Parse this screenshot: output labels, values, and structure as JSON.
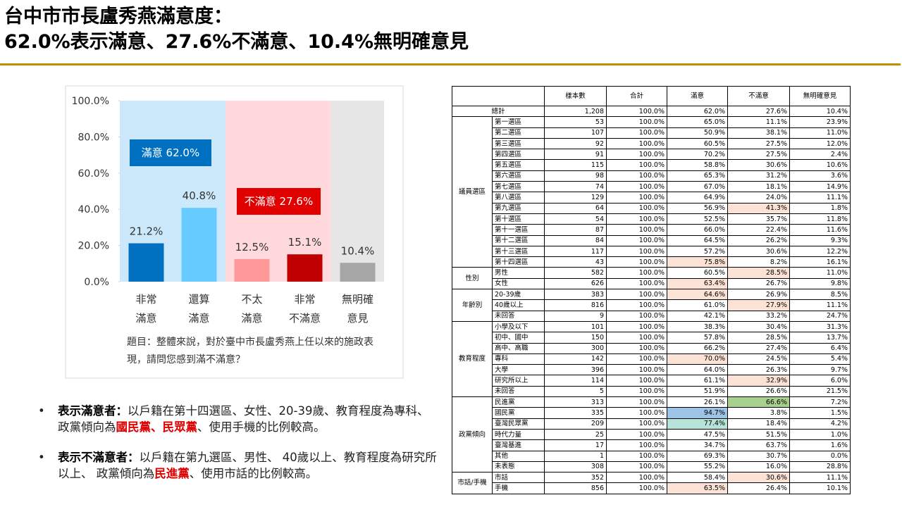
{
  "header": {
    "title": [
      "台中市市長盧秀燕滿意度：",
      "62.0%表示滿意、27.6%不滿意、10.4%無明確意見"
    ]
  },
  "chart_data": {
    "type": "bar",
    "categories": [
      [
        "非常",
        "滿意"
      ],
      [
        "還算",
        "滿意"
      ],
      [
        "不太",
        "滿意"
      ],
      [
        "非常",
        "不滿意"
      ],
      [
        "無明確",
        "意見"
      ]
    ],
    "values": [
      21.2,
      40.8,
      12.5,
      15.1,
      10.4
    ],
    "value_labels": [
      "21.2%",
      "40.8%",
      "12.5%",
      "15.1%",
      "10.4%"
    ],
    "colors": [
      "#0070c0",
      "#66ccff",
      "#ff9999",
      "#c00000",
      "#a6a6a6"
    ],
    "band_colors": [
      "#cce9fb",
      "#cce9fb",
      "#ffd9dc",
      "#ffd9dc",
      "#e6e6e6"
    ],
    "ylim": [
      0,
      100
    ],
    "yticks": [
      {
        "value": 0,
        "label": "0.0%"
      },
      {
        "value": 20,
        "label": "20.0%"
      },
      {
        "value": 40,
        "label": "40.0%"
      },
      {
        "value": 60,
        "label": "60.0%"
      },
      {
        "value": 80,
        "label": "80.0%"
      },
      {
        "value": 100,
        "label": "100.0%"
      }
    ],
    "annotations": [
      {
        "text": "滿意 62.0%",
        "color": "#0070c0"
      },
      {
        "text": "不滿意 27.6%",
        "color": "#e00000"
      }
    ],
    "note": "題目：整體來說，對於臺中市長盧秀燕上任以來的施政表現，請問您感到滿不滿意？"
  },
  "table": {
    "header": [
      "樣本數",
      "合計",
      "滿意",
      "不滿意",
      "無明確意見"
    ],
    "total": {
      "label": "總計",
      "cells": [
        "1,208",
        "100.0%",
        "62.0%",
        "27.6%",
        "10.4%"
      ]
    },
    "groups": [
      {
        "name": "議員選區",
        "rows": [
          {
            "label": "第一選區",
            "cells": [
              "53",
              "100.0%",
              "65.0%",
              "11.1%",
              "23.9%"
            ]
          },
          {
            "label": "第二選區",
            "cells": [
              "107",
              "100.0%",
              "50.9%",
              "38.1%",
              "11.0%"
            ]
          },
          {
            "label": "第三選區",
            "cells": [
              "92",
              "100.0%",
              "60.5%",
              "27.5%",
              "12.0%"
            ]
          },
          {
            "label": "第四選區",
            "cells": [
              "91",
              "100.0%",
              "70.2%",
              "27.5%",
              "2.4%"
            ]
          },
          {
            "label": "第五選區",
            "cells": [
              "115",
              "100.0%",
              "58.8%",
              "30.6%",
              "10.6%"
            ]
          },
          {
            "label": "第六選區",
            "cells": [
              "98",
              "100.0%",
              "65.3%",
              "31.2%",
              "3.6%"
            ]
          },
          {
            "label": "第七選區",
            "cells": [
              "74",
              "100.0%",
              "67.0%",
              "18.1%",
              "14.9%"
            ]
          },
          {
            "label": "第八選區",
            "cells": [
              "129",
              "100.0%",
              "64.9%",
              "24.0%",
              "11.1%"
            ]
          },
          {
            "label": "第九選區",
            "cells": [
              "64",
              "100.0%",
              "56.9%",
              "41.3%",
              "1.8%"
            ],
            "fill_col": 3,
            "fill": "#fbe2d5"
          },
          {
            "label": "第十選區",
            "cells": [
              "54",
              "100.0%",
              "52.5%",
              "35.7%",
              "11.8%"
            ]
          },
          {
            "label": "第十一選區",
            "cells": [
              "87",
              "100.0%",
              "66.0%",
              "22.4%",
              "11.6%"
            ]
          },
          {
            "label": "第十二選區",
            "cells": [
              "84",
              "100.0%",
              "64.5%",
              "26.2%",
              "9.3%"
            ]
          },
          {
            "label": "第十三選區",
            "cells": [
              "117",
              "100.0%",
              "57.2%",
              "30.6%",
              "12.2%"
            ]
          },
          {
            "label": "第十四選區",
            "cells": [
              "43",
              "100.0%",
              "75.8%",
              "8.2%",
              "16.1%"
            ],
            "fill_col": 2,
            "fill": "#fbe2d5"
          }
        ]
      },
      {
        "name": "性別",
        "rows": [
          {
            "label": "男性",
            "cells": [
              "582",
              "100.0%",
              "60.5%",
              "28.5%",
              "11.0%"
            ],
            "fill_col": 3,
            "fill": "#fbe2d5"
          },
          {
            "label": "女性",
            "cells": [
              "626",
              "100.0%",
              "63.4%",
              "26.7%",
              "9.8%"
            ],
            "fill_col": 2,
            "fill": "#fbe2d5"
          }
        ]
      },
      {
        "name": "年齡別",
        "rows": [
          {
            "label": "20-39歲",
            "cells": [
              "383",
              "100.0%",
              "64.6%",
              "26.9%",
              "8.5%"
            ],
            "fill_col": 2,
            "fill": "#fbe2d5"
          },
          {
            "label": "40歲以上",
            "cells": [
              "816",
              "100.0%",
              "61.0%",
              "27.9%",
              "11.1%"
            ],
            "fill_col": 3,
            "fill": "#fbe2d5"
          },
          {
            "label": "未回答",
            "cells": [
              "9",
              "100.0%",
              "42.1%",
              "33.2%",
              "24.7%"
            ]
          }
        ]
      },
      {
        "name": "教育程度",
        "rows": [
          {
            "label": "小學及以下",
            "cells": [
              "101",
              "100.0%",
              "38.3%",
              "30.4%",
              "31.3%"
            ]
          },
          {
            "label": "初中、國中",
            "cells": [
              "150",
              "100.0%",
              "57.8%",
              "28.5%",
              "13.7%"
            ]
          },
          {
            "label": "高中、高職",
            "cells": [
              "300",
              "100.0%",
              "66.2%",
              "27.4%",
              "6.4%"
            ]
          },
          {
            "label": "專科",
            "cells": [
              "142",
              "100.0%",
              "70.0%",
              "24.5%",
              "5.4%"
            ],
            "fill_col": 2,
            "fill": "#fbe2d5"
          },
          {
            "label": "大學",
            "cells": [
              "396",
              "100.0%",
              "64.0%",
              "26.3%",
              "9.7%"
            ]
          },
          {
            "label": "研究所以上",
            "cells": [
              "114",
              "100.0%",
              "61.1%",
              "32.9%",
              "6.0%"
            ],
            "fill_col": 3,
            "fill": "#fbe2d5"
          },
          {
            "label": "未回答",
            "cells": [
              "5",
              "100.0%",
              "51.9%",
              "26.6%",
              "21.5%"
            ]
          }
        ]
      },
      {
        "name": "政黨傾向",
        "rows": [
          {
            "label": "民進黨",
            "cells": [
              "313",
              "100.0%",
              "26.1%",
              "66.6%",
              "7.2%"
            ],
            "fill_col": 3,
            "fill": "#a9d18e"
          },
          {
            "label": "國民黨",
            "cells": [
              "335",
              "100.0%",
              "94.7%",
              "3.8%",
              "1.5%"
            ],
            "fill_col": 2,
            "fill": "#9dc3e6"
          },
          {
            "label": "臺灣民眾黨",
            "cells": [
              "209",
              "100.0%",
              "77.4%",
              "18.4%",
              "4.2%"
            ],
            "fill_col": 2,
            "fill": "#b7e4d8"
          },
          {
            "label": "時代力量",
            "cells": [
              "25",
              "100.0%",
              "47.5%",
              "51.5%",
              "1.0%"
            ]
          },
          {
            "label": "臺灣基進",
            "cells": [
              "17",
              "100.0%",
              "34.7%",
              "63.7%",
              "1.6%"
            ]
          },
          {
            "label": "其他",
            "cells": [
              "1",
              "100.0%",
              "69.3%",
              "30.7%",
              "0.0%"
            ]
          },
          {
            "label": "未表態",
            "cells": [
              "308",
              "100.0%",
              "55.2%",
              "16.0%",
              "28.8%"
            ]
          }
        ]
      },
      {
        "name": "市話/手機",
        "rows": [
          {
            "label": "市話",
            "cells": [
              "352",
              "100.0%",
              "58.4%",
              "30.6%",
              "11.1%"
            ],
            "fill_col": 3,
            "fill": "#fbe2d5"
          },
          {
            "label": "手機",
            "cells": [
              "856",
              "100.0%",
              "63.5%",
              "26.4%",
              "10.1%"
            ],
            "fill_col": 2,
            "fill": "#fbe2d5"
          }
        ]
      }
    ]
  },
  "notes": [
    {
      "lead": "表示滿意者：",
      "segments": [
        {
          "text": "以戶籍在第十四選區、女性、20-39歲、教育程度為專科、 政黨傾向為"
        },
        {
          "text": "國民黨、民眾黨",
          "emphasis": true
        },
        {
          "text": "、使用手機的比例較高。"
        }
      ]
    },
    {
      "lead": "表示不滿意者：",
      "segments": [
        {
          "text": "以戶籍在第九選區、男性、 40歲以上、教育程度為研究所以上、 政黨傾向為"
        },
        {
          "text": "民進黨",
          "emphasis": true
        },
        {
          "text": "、使用市話的比例較高。"
        }
      ]
    }
  ]
}
